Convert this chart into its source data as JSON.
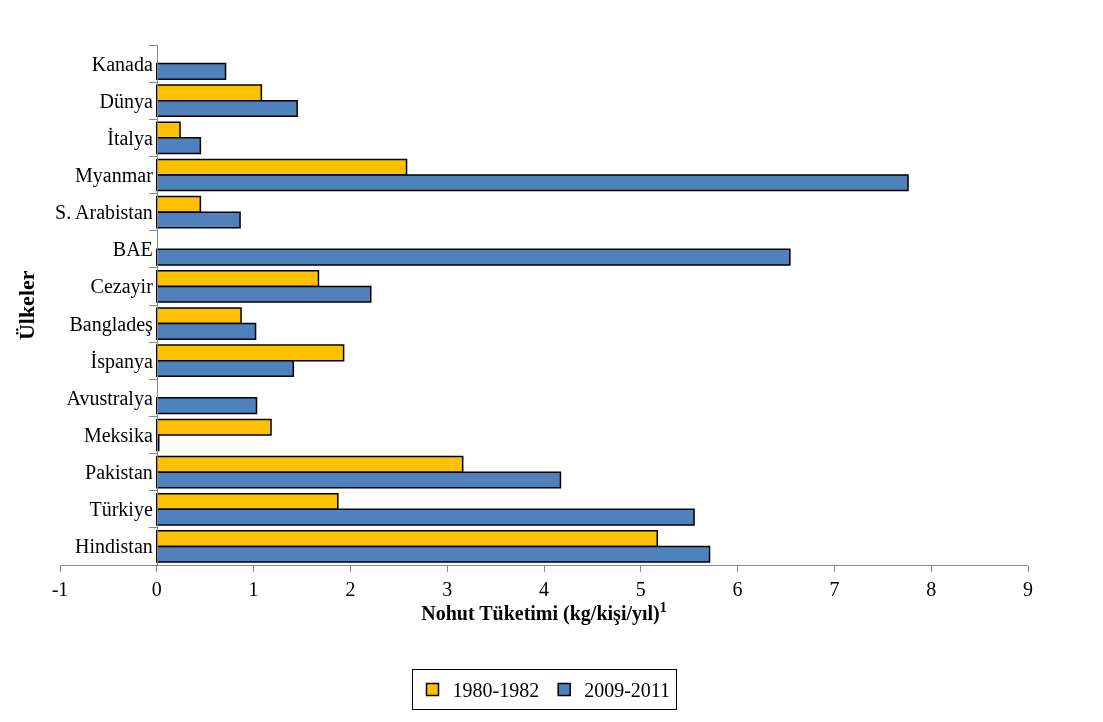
{
  "chart_data": {
    "type": "bar",
    "orientation": "horizontal",
    "xlabel": "Nohut Tüketimi (kg/kişi/yıl)$^{1}$",
    "ylabel": "Ülkeler",
    "categories": [
      "Kanada",
      "Dünya",
      "İtalya",
      "Myanmar",
      "S. Arabistan",
      "BAE",
      "Cezayir",
      "Bangladeş",
      "İspanya",
      "Avustralya",
      "Meksika",
      "Pakistan",
      "Türkiye",
      "Hindistan"
    ],
    "series": [
      {
        "name": "1980-1982",
        "color": "#ffc000",
        "values": [
          null,
          1.08,
          0.24,
          2.58,
          0.45,
          null,
          1.67,
          0.87,
          1.93,
          null,
          1.18,
          3.16,
          1.87,
          5.17
        ]
      },
      {
        "name": "2009-2011",
        "color": "#4f81bd",
        "values": [
          0.71,
          1.45,
          0.45,
          7.76,
          0.86,
          6.54,
          2.21,
          1.02,
          1.41,
          1.03,
          0.02,
          4.17,
          5.55,
          5.71
        ]
      }
    ],
    "xlim": [
      -1,
      9
    ],
    "xticks": [
      -1,
      0,
      1,
      2,
      3,
      4,
      5,
      6,
      7,
      8,
      9
    ],
    "legend": "bottom"
  }
}
